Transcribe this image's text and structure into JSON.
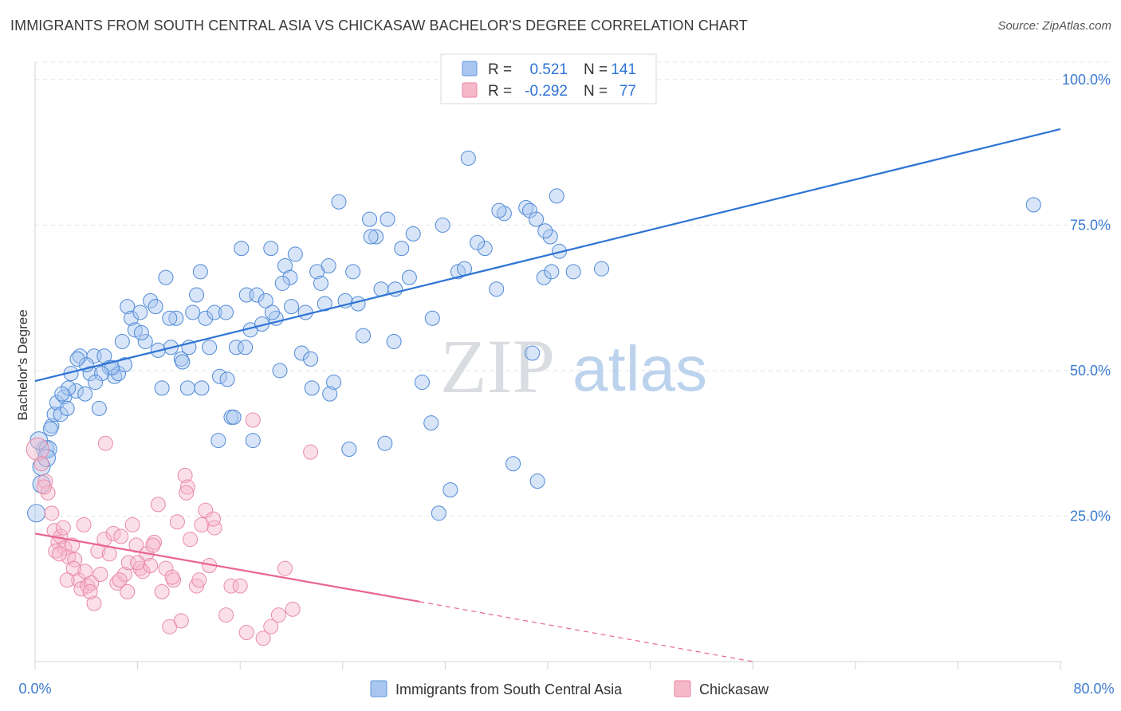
{
  "title": "IMMIGRANTS FROM SOUTH CENTRAL ASIA VS CHICKASAW BACHELOR'S DEGREE CORRELATION CHART",
  "source": "Source: ZipAtlas.com",
  "watermark": {
    "zip": "ZIP",
    "atlas": "atlas"
  },
  "colors": {
    "blue": "#2e74d4",
    "blue_fill": "#a8c6ef",
    "pink": "#e9658f",
    "pink_fill": "#f6b8cb",
    "tick_blue": "#3d7bd0"
  },
  "legend_box": {
    "rows": [
      {
        "r_label": "R =",
        "r_value": "0.521",
        "n_label": "N =",
        "n_value": "141"
      },
      {
        "r_label": "R =",
        "r_value": "-0.292",
        "n_label": "N =",
        "n_value": "77"
      }
    ]
  },
  "chart_data": {
    "type": "scatter",
    "xlabel": "",
    "ylabel": "Bachelor's Degree",
    "xlim": [
      0,
      80
    ],
    "ylim": [
      0,
      103
    ],
    "x_tick_labels": {
      "min": "0.0%",
      "max": "80.0%"
    },
    "y_ticks": [
      {
        "value": 25,
        "label": "25.0%"
      },
      {
        "value": 50,
        "label": "50.0%"
      },
      {
        "value": 75,
        "label": "75.0%"
      },
      {
        "value": 100,
        "label": "100.0%"
      }
    ],
    "legend": [
      "Immigrants from South Central Asia",
      "Chickasaw"
    ],
    "series": [
      {
        "name": "Immigrants from South Central Asia",
        "r": 0.521,
        "n": 141,
        "trend": {
          "x": [
            0,
            80
          ],
          "y": [
            48.2,
            91.5
          ]
        },
        "points": [
          [
            0.1,
            25.5
          ],
          [
            0.5,
            33.5
          ],
          [
            0.8,
            36.5
          ],
          [
            0.5,
            30.5
          ],
          [
            1.0,
            36.5
          ],
          [
            1.3,
            40.5
          ],
          [
            1.5,
            42.5
          ],
          [
            1.7,
            44.5
          ],
          [
            2.0,
            42.5
          ],
          [
            2.3,
            45.5
          ],
          [
            2.5,
            43.5
          ],
          [
            2.8,
            49.5
          ],
          [
            3.2,
            46.5
          ],
          [
            3.5,
            52.5
          ],
          [
            3.9,
            46.0
          ],
          [
            4.3,
            49.5
          ],
          [
            4.6,
            52.5
          ],
          [
            5.0,
            43.5
          ],
          [
            5.4,
            52.5
          ],
          [
            5.8,
            50.5
          ],
          [
            6.2,
            49.0
          ],
          [
            6.5,
            49.5
          ],
          [
            6.8,
            55.0
          ],
          [
            7.2,
            61.0
          ],
          [
            7.5,
            59.0
          ],
          [
            7.8,
            57.0
          ],
          [
            8.2,
            60.0
          ],
          [
            8.6,
            55.0
          ],
          [
            9.0,
            62.0
          ],
          [
            9.4,
            61.0
          ],
          [
            9.9,
            47.0
          ],
          [
            10.2,
            66.0
          ],
          [
            10.6,
            54.0
          ],
          [
            11.0,
            59.0
          ],
          [
            11.4,
            52.0
          ],
          [
            11.9,
            47.0
          ],
          [
            12.3,
            60.0
          ],
          [
            12.6,
            63.0
          ],
          [
            12.9,
            67.0
          ],
          [
            13.3,
            59.0
          ],
          [
            13.6,
            54.0
          ],
          [
            14.0,
            60.0
          ],
          [
            14.4,
            49.0
          ],
          [
            14.9,
            60.0
          ],
          [
            15.3,
            42.0
          ],
          [
            15.7,
            54.0
          ],
          [
            16.1,
            71.0
          ],
          [
            16.5,
            63.0
          ],
          [
            16.8,
            57.0
          ],
          [
            17.3,
            63.0
          ],
          [
            17.7,
            58.0
          ],
          [
            18.0,
            62.0
          ],
          [
            18.4,
            71.0
          ],
          [
            18.8,
            59.0
          ],
          [
            19.1,
            50.0
          ],
          [
            19.5,
            68.0
          ],
          [
            19.9,
            66.0
          ],
          [
            20.3,
            70.0
          ],
          [
            20.8,
            53.0
          ],
          [
            21.1,
            60.0
          ],
          [
            21.6,
            47.0
          ],
          [
            22.0,
            67.0
          ],
          [
            22.3,
            65.0
          ],
          [
            22.9,
            68.0
          ],
          [
            23.3,
            48.0
          ],
          [
            23.7,
            79.0
          ],
          [
            24.2,
            62.0
          ],
          [
            24.8,
            67.0
          ],
          [
            25.6,
            56.0
          ],
          [
            26.1,
            76.0
          ],
          [
            26.6,
            73.0
          ],
          [
            27.0,
            64.0
          ],
          [
            27.5,
            76.0
          ],
          [
            28.1,
            64.0
          ],
          [
            28.6,
            71.0
          ],
          [
            29.2,
            66.0
          ],
          [
            30.2,
            48.0
          ],
          [
            30.9,
            41.0
          ],
          [
            31.8,
            75.0
          ],
          [
            32.4,
            29.5
          ],
          [
            33.0,
            67.0
          ],
          [
            33.8,
            86.5
          ],
          [
            35.1,
            71.0
          ],
          [
            36.0,
            64.0
          ],
          [
            36.6,
            77.0
          ],
          [
            37.3,
            34.0
          ],
          [
            38.3,
            78.0
          ],
          [
            38.6,
            77.5
          ],
          [
            39.1,
            76.0
          ],
          [
            39.2,
            31.0
          ],
          [
            39.7,
            66.0
          ],
          [
            40.2,
            73.0
          ],
          [
            40.7,
            80.0
          ],
          [
            40.9,
            70.5
          ],
          [
            39.8,
            74.0
          ],
          [
            77.9,
            78.5
          ],
          [
            36.2,
            77.5
          ],
          [
            34.5,
            72.0
          ],
          [
            31.0,
            59.0
          ],
          [
            29.5,
            73.5
          ],
          [
            28.0,
            55.0
          ],
          [
            26.2,
            73.0
          ],
          [
            24.5,
            36.5
          ],
          [
            23.0,
            46.0
          ],
          [
            21.5,
            52.0
          ],
          [
            20.0,
            61.0
          ],
          [
            18.5,
            60.0
          ],
          [
            17.0,
            38.0
          ],
          [
            15.5,
            42.0
          ],
          [
            14.3,
            38.0
          ],
          [
            13.0,
            47.0
          ],
          [
            12.0,
            54.0
          ],
          [
            11.5,
            51.5
          ],
          [
            10.5,
            59.0
          ],
          [
            9.6,
            53.5
          ],
          [
            8.3,
            56.5
          ],
          [
            7.0,
            51.0
          ],
          [
            6.0,
            50.5
          ],
          [
            5.2,
            49.5
          ],
          [
            4.7,
            48.0
          ],
          [
            4.0,
            51.0
          ],
          [
            3.3,
            52.0
          ],
          [
            2.6,
            47.0
          ],
          [
            2.1,
            46.0
          ],
          [
            1.2,
            40.0
          ],
          [
            0.9,
            35.0
          ],
          [
            0.3,
            38.0
          ],
          [
            16.4,
            54.0
          ],
          [
            19.3,
            65.0
          ],
          [
            22.6,
            61.5
          ],
          [
            25.2,
            61.5
          ],
          [
            27.3,
            37.5
          ],
          [
            31.5,
            25.5
          ],
          [
            38.8,
            53.0
          ],
          [
            40.3,
            67.0
          ],
          [
            42.0,
            67.0
          ],
          [
            44.2,
            67.5
          ],
          [
            33.5,
            67.5
          ],
          [
            15.0,
            48.5
          ]
        ]
      },
      {
        "name": "Chickasaw",
        "r": -0.292,
        "n": 77,
        "trend": {
          "x": [
            0,
            30
          ],
          "y": [
            22.0,
            10.3
          ],
          "dashed_to": {
            "x": 56,
            "y": 0
          }
        },
        "points": [
          [
            0.2,
            36.5
          ],
          [
            0.5,
            34.0
          ],
          [
            0.8,
            31.0
          ],
          [
            1.0,
            29.0
          ],
          [
            1.3,
            25.5
          ],
          [
            1.5,
            22.5
          ],
          [
            1.8,
            20.5
          ],
          [
            2.0,
            21.5
          ],
          [
            2.3,
            19.5
          ],
          [
            2.6,
            18.0
          ],
          [
            2.9,
            20.0
          ],
          [
            3.1,
            17.5
          ],
          [
            3.4,
            14.0
          ],
          [
            3.6,
            12.5
          ],
          [
            3.9,
            15.5
          ],
          [
            4.1,
            13.0
          ],
          [
            4.4,
            13.5
          ],
          [
            4.6,
            10.0
          ],
          [
            4.9,
            19.0
          ],
          [
            5.1,
            15.0
          ],
          [
            5.4,
            21.0
          ],
          [
            5.8,
            18.5
          ],
          [
            6.1,
            22.0
          ],
          [
            6.4,
            13.5
          ],
          [
            6.7,
            21.5
          ],
          [
            7.0,
            15.0
          ],
          [
            7.3,
            17.0
          ],
          [
            7.6,
            23.5
          ],
          [
            7.9,
            20.0
          ],
          [
            8.2,
            16.0
          ],
          [
            8.4,
            15.5
          ],
          [
            8.7,
            18.5
          ],
          [
            9.0,
            16.5
          ],
          [
            9.3,
            20.5
          ],
          [
            9.6,
            27.0
          ],
          [
            9.9,
            12.0
          ],
          [
            10.2,
            16.0
          ],
          [
            10.5,
            6.0
          ],
          [
            10.8,
            14.0
          ],
          [
            11.1,
            24.0
          ],
          [
            11.4,
            7.0
          ],
          [
            11.7,
            32.0
          ],
          [
            11.9,
            30.0
          ],
          [
            12.1,
            21.0
          ],
          [
            12.6,
            13.0
          ],
          [
            13.0,
            23.5
          ],
          [
            13.3,
            26.0
          ],
          [
            13.6,
            16.5
          ],
          [
            14.0,
            23.0
          ],
          [
            14.9,
            8.0
          ],
          [
            15.3,
            13.0
          ],
          [
            16.0,
            13.0
          ],
          [
            16.5,
            5.0
          ],
          [
            17.0,
            41.5
          ],
          [
            17.8,
            4.0
          ],
          [
            18.4,
            6.0
          ],
          [
            19.0,
            8.0
          ],
          [
            19.5,
            16.0
          ],
          [
            20.1,
            9.0
          ],
          [
            21.5,
            36.0
          ],
          [
            5.5,
            37.5
          ],
          [
            2.2,
            23.0
          ],
          [
            3.8,
            23.5
          ],
          [
            1.6,
            19.0
          ],
          [
            12.8,
            14.0
          ],
          [
            9.2,
            20.0
          ],
          [
            8.0,
            17.0
          ],
          [
            6.6,
            14.0
          ],
          [
            3.0,
            16.0
          ],
          [
            10.7,
            14.5
          ],
          [
            11.8,
            29.0
          ],
          [
            13.9,
            24.5
          ],
          [
            0.7,
            30.0
          ],
          [
            2.5,
            14.0
          ],
          [
            1.9,
            18.5
          ],
          [
            4.3,
            12.0
          ],
          [
            7.2,
            12.0
          ]
        ]
      }
    ]
  }
}
